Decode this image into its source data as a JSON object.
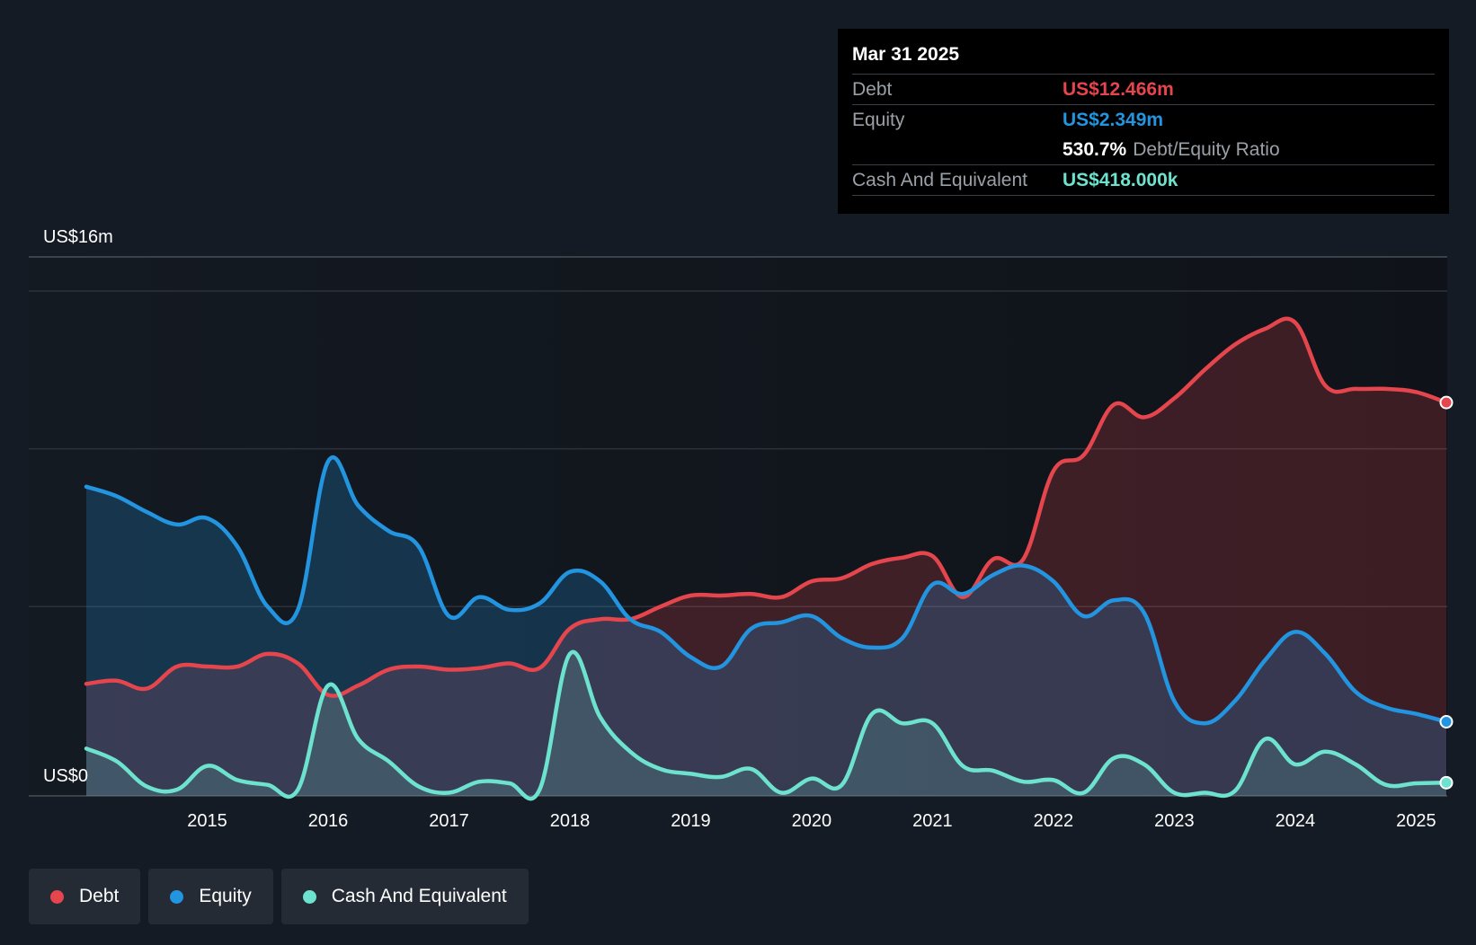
{
  "tooltip": {
    "date": "Mar 31 2025",
    "rows": [
      {
        "label": "Debt",
        "value": "US$12.466m",
        "color": "#e5454c"
      },
      {
        "label": "Equity",
        "value": "US$2.349m",
        "color": "#2394df"
      },
      {
        "ratio_value": "530.7%",
        "ratio_label": "Debt/Equity Ratio"
      },
      {
        "label": "Cash And Equivalent",
        "value": "US$418.000k",
        "color": "#6de3cf"
      }
    ]
  },
  "legend": [
    {
      "label": "Debt",
      "color": "#e5454c"
    },
    {
      "label": "Equity",
      "color": "#2394df"
    },
    {
      "label": "Cash And Equivalent",
      "color": "#6de3cf"
    }
  ],
  "chart_data": {
    "type": "area",
    "title": "",
    "xlabel": "",
    "ylabel": "",
    "y_top_label": "US$16m",
    "y_bottom_label": "US$0",
    "ylim": [
      0,
      16
    ],
    "xlim": [
      2014.0,
      2025.25
    ],
    "x_tick_labels": [
      "2015",
      "2016",
      "2017",
      "2018",
      "2019",
      "2020",
      "2021",
      "2022",
      "2023",
      "2024",
      "2025"
    ],
    "grid": true,
    "legend_position": "bottom-left",
    "series": [
      {
        "name": "Debt",
        "color": "#e5454c",
        "points": [
          [
            2014.0,
            3.55
          ],
          [
            2014.25,
            3.65
          ],
          [
            2014.5,
            3.4
          ],
          [
            2014.75,
            4.1
          ],
          [
            2015.0,
            4.1
          ],
          [
            2015.25,
            4.1
          ],
          [
            2015.5,
            4.5
          ],
          [
            2015.75,
            4.2
          ],
          [
            2016.0,
            3.2
          ],
          [
            2016.25,
            3.5
          ],
          [
            2016.5,
            4.0
          ],
          [
            2016.75,
            4.1
          ],
          [
            2017.0,
            4.0
          ],
          [
            2017.25,
            4.05
          ],
          [
            2017.5,
            4.2
          ],
          [
            2017.75,
            4.05
          ],
          [
            2018.0,
            5.3
          ],
          [
            2018.25,
            5.6
          ],
          [
            2018.5,
            5.6
          ],
          [
            2018.75,
            6.0
          ],
          [
            2019.0,
            6.35
          ],
          [
            2019.25,
            6.35
          ],
          [
            2019.5,
            6.4
          ],
          [
            2019.75,
            6.3
          ],
          [
            2020.0,
            6.8
          ],
          [
            2020.25,
            6.9
          ],
          [
            2020.5,
            7.35
          ],
          [
            2020.75,
            7.55
          ],
          [
            2021.0,
            7.6
          ],
          [
            2021.25,
            6.3
          ],
          [
            2021.5,
            7.5
          ],
          [
            2021.75,
            7.5
          ],
          [
            2022.0,
            10.3
          ],
          [
            2022.25,
            10.8
          ],
          [
            2022.5,
            12.4
          ],
          [
            2022.75,
            12.0
          ],
          [
            2023.0,
            12.6
          ],
          [
            2023.25,
            13.5
          ],
          [
            2023.5,
            14.3
          ],
          [
            2023.75,
            14.8
          ],
          [
            2024.0,
            15.0
          ],
          [
            2024.25,
            13.0
          ],
          [
            2024.5,
            12.9
          ],
          [
            2024.75,
            12.9
          ],
          [
            2025.0,
            12.8
          ],
          [
            2025.25,
            12.466
          ]
        ]
      },
      {
        "name": "Equity",
        "color": "#2394df",
        "points": [
          [
            2014.0,
            9.8
          ],
          [
            2014.25,
            9.5
          ],
          [
            2014.5,
            9.0
          ],
          [
            2014.75,
            8.6
          ],
          [
            2015.0,
            8.8
          ],
          [
            2015.25,
            7.9
          ],
          [
            2015.5,
            6.0
          ],
          [
            2015.75,
            5.9
          ],
          [
            2016.0,
            10.6
          ],
          [
            2016.25,
            9.2
          ],
          [
            2016.5,
            8.4
          ],
          [
            2016.75,
            7.9
          ],
          [
            2017.0,
            5.7
          ],
          [
            2017.25,
            6.3
          ],
          [
            2017.5,
            5.9
          ],
          [
            2017.75,
            6.1
          ],
          [
            2018.0,
            7.1
          ],
          [
            2018.25,
            6.8
          ],
          [
            2018.5,
            5.6
          ],
          [
            2018.75,
            5.2
          ],
          [
            2019.0,
            4.4
          ],
          [
            2019.25,
            4.1
          ],
          [
            2019.5,
            5.3
          ],
          [
            2019.75,
            5.5
          ],
          [
            2020.0,
            5.7
          ],
          [
            2020.25,
            5.0
          ],
          [
            2020.5,
            4.7
          ],
          [
            2020.75,
            5.0
          ],
          [
            2021.0,
            6.7
          ],
          [
            2021.25,
            6.4
          ],
          [
            2021.5,
            7.0
          ],
          [
            2021.75,
            7.3
          ],
          [
            2022.0,
            6.8
          ],
          [
            2022.25,
            5.7
          ],
          [
            2022.5,
            6.2
          ],
          [
            2022.75,
            5.8
          ],
          [
            2023.0,
            3.0
          ],
          [
            2023.25,
            2.3
          ],
          [
            2023.5,
            3.0
          ],
          [
            2023.75,
            4.3
          ],
          [
            2024.0,
            5.2
          ],
          [
            2024.25,
            4.5
          ],
          [
            2024.5,
            3.3
          ],
          [
            2024.75,
            2.8
          ],
          [
            2025.0,
            2.6
          ],
          [
            2025.25,
            2.349
          ]
        ]
      },
      {
        "name": "Cash And Equivalent",
        "color": "#6de3cf",
        "points": [
          [
            2014.0,
            1.5
          ],
          [
            2014.25,
            1.1
          ],
          [
            2014.5,
            0.3
          ],
          [
            2014.75,
            0.2
          ],
          [
            2015.0,
            0.95
          ],
          [
            2015.25,
            0.5
          ],
          [
            2015.5,
            0.35
          ],
          [
            2015.75,
            0.2
          ],
          [
            2016.0,
            3.5
          ],
          [
            2016.25,
            1.8
          ],
          [
            2016.5,
            1.1
          ],
          [
            2016.75,
            0.3
          ],
          [
            2017.0,
            0.1
          ],
          [
            2017.25,
            0.45
          ],
          [
            2017.5,
            0.4
          ],
          [
            2017.75,
            0.2
          ],
          [
            2018.0,
            4.5
          ],
          [
            2018.25,
            2.5
          ],
          [
            2018.5,
            1.4
          ],
          [
            2018.75,
            0.85
          ],
          [
            2019.0,
            0.7
          ],
          [
            2019.25,
            0.6
          ],
          [
            2019.5,
            0.85
          ],
          [
            2019.75,
            0.1
          ],
          [
            2020.0,
            0.55
          ],
          [
            2020.25,
            0.35
          ],
          [
            2020.5,
            2.6
          ],
          [
            2020.75,
            2.3
          ],
          [
            2021.0,
            2.3
          ],
          [
            2021.25,
            0.95
          ],
          [
            2021.5,
            0.8
          ],
          [
            2021.75,
            0.45
          ],
          [
            2022.0,
            0.5
          ],
          [
            2022.25,
            0.1
          ],
          [
            2022.5,
            1.2
          ],
          [
            2022.75,
            1.0
          ],
          [
            2023.0,
            0.1
          ],
          [
            2023.25,
            0.1
          ],
          [
            2023.5,
            0.15
          ],
          [
            2023.75,
            1.8
          ],
          [
            2024.0,
            1.0
          ],
          [
            2024.25,
            1.4
          ],
          [
            2024.5,
            1.0
          ],
          [
            2024.75,
            0.35
          ],
          [
            2025.0,
            0.4
          ],
          [
            2025.25,
            0.418
          ]
        ]
      }
    ]
  }
}
